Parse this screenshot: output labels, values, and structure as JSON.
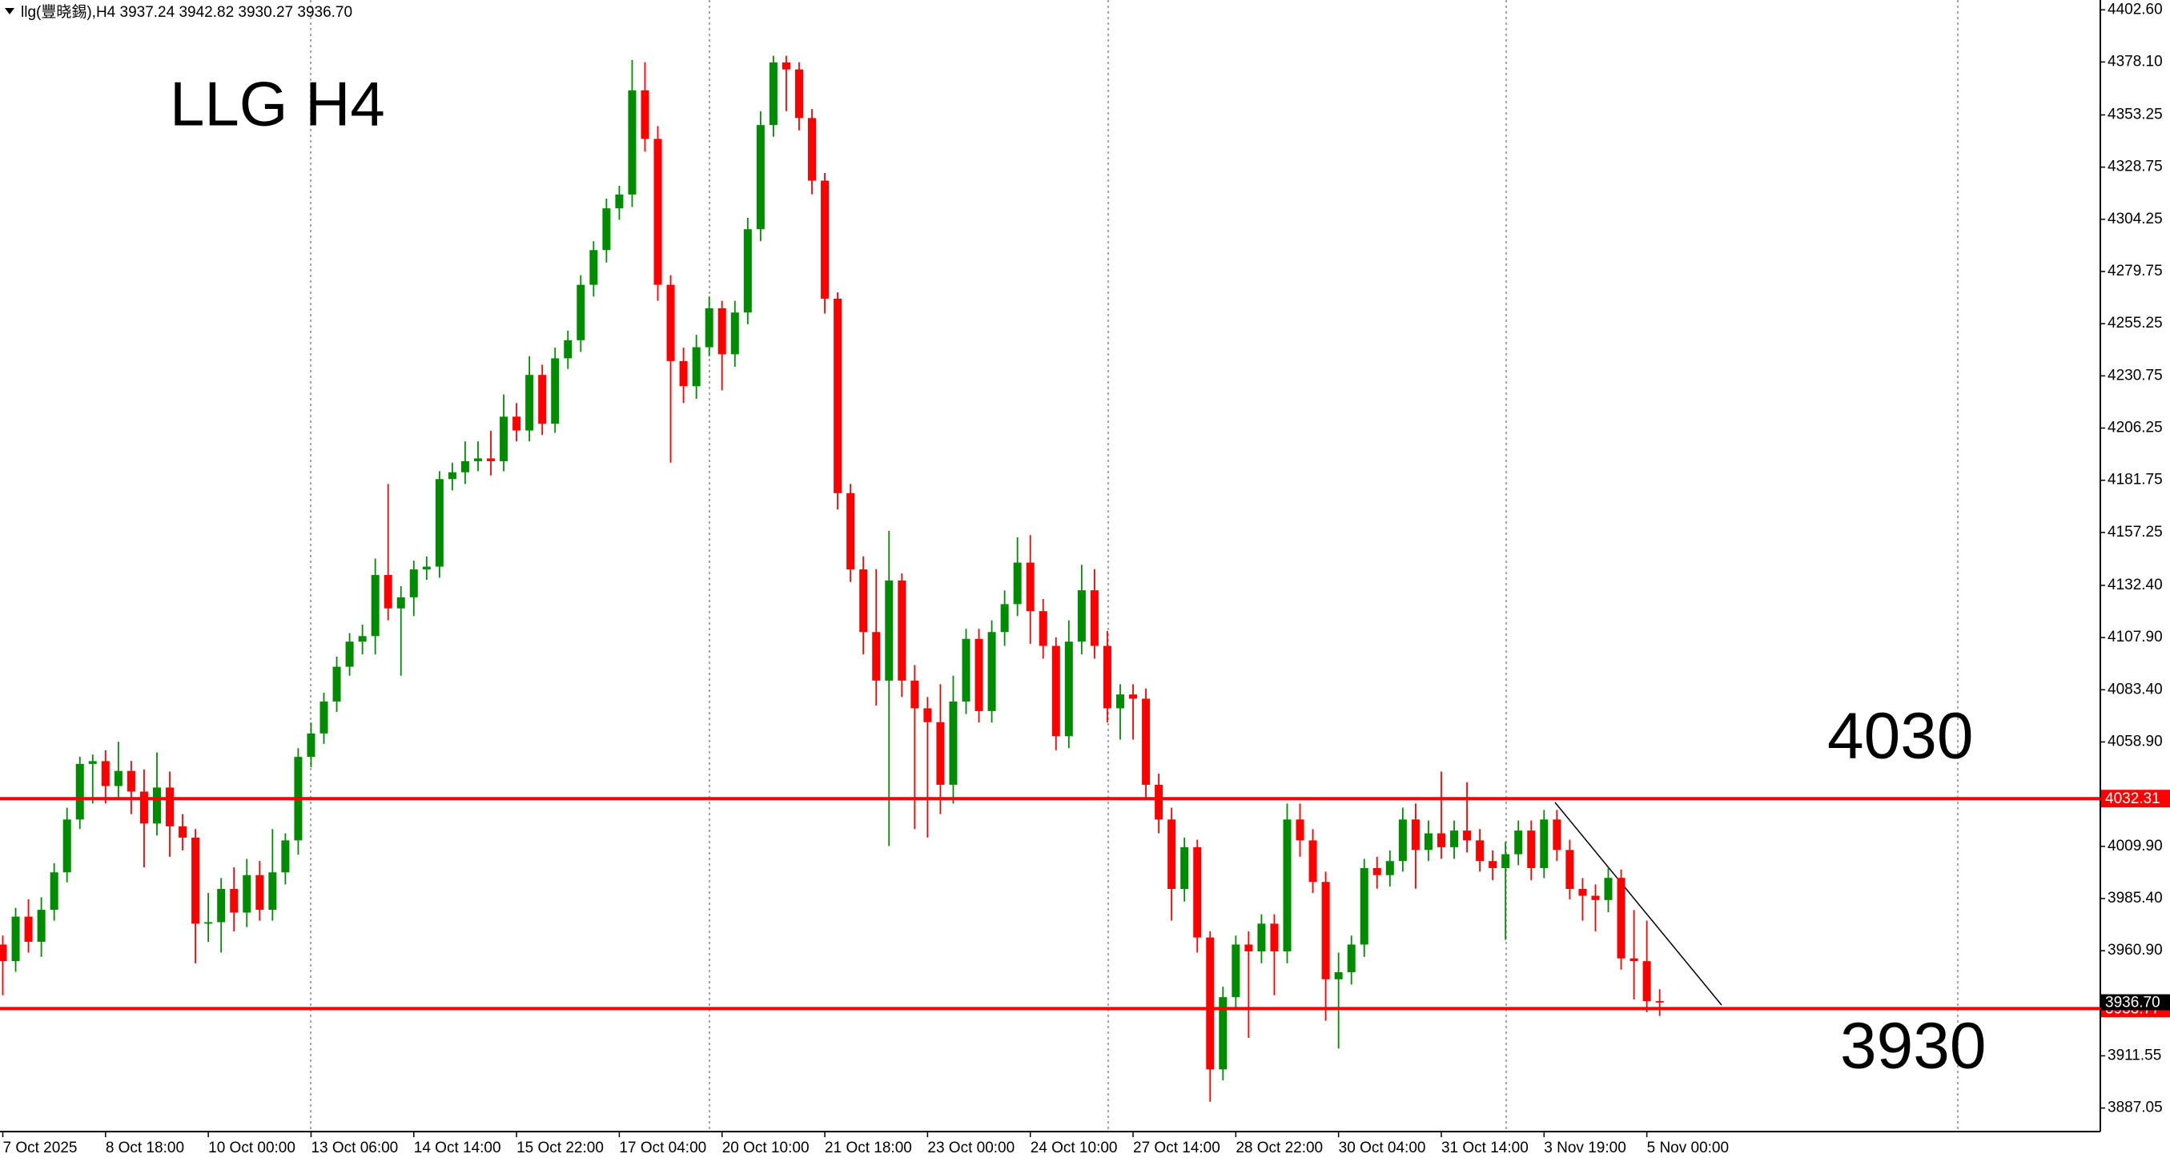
{
  "chart_data": {
    "type": "candlestick",
    "title": "llg(豐晓錫),H4  3937.24 3942.82 3930.27 3936.70",
    "annotations": [
      "LLG  H4",
      "4030",
      "3930"
    ],
    "up_color": "#008c00",
    "down_color": "#ff0000",
    "hline_color": "#ff0000",
    "categories": [
      "7 Oct 2025",
      null,
      null,
      null,
      null,
      null,
      null,
      null,
      "8 Oct 18:00",
      null,
      null,
      null,
      null,
      null,
      null,
      null,
      "10 Oct 00:00",
      null,
      null,
      null,
      null,
      null,
      null,
      null,
      "13 Oct 06:00",
      null,
      null,
      null,
      null,
      null,
      null,
      null,
      "14 Oct 14:00",
      null,
      null,
      null,
      null,
      null,
      null,
      null,
      "15 Oct 22:00",
      null,
      null,
      null,
      null,
      null,
      null,
      null,
      "17 Oct 04:00",
      null,
      null,
      null,
      null,
      null,
      null,
      null,
      "20 Oct 10:00",
      null,
      null,
      null,
      null,
      null,
      null,
      null,
      "21 Oct 18:00",
      null,
      null,
      null,
      null,
      null,
      null,
      null,
      "23 Oct 00:00",
      null,
      null,
      null,
      null,
      null,
      null,
      null,
      "24 Oct 10:00",
      null,
      null,
      null,
      null,
      null,
      null,
      null,
      "27 Oct 14:00",
      null,
      null,
      null,
      null,
      null,
      null,
      null,
      "28 Oct 22:00",
      null,
      null,
      null,
      null,
      null,
      null,
      null,
      "30 Oct 04:00",
      null,
      null,
      null,
      null,
      null,
      null,
      null,
      "31 Oct 14:00",
      null,
      null,
      null,
      null,
      null,
      null,
      null,
      "3 Nov 19:00",
      null,
      null,
      null,
      null,
      null,
      null,
      null,
      "5 Nov 00:00",
      null
    ],
    "open": [
      3963.8,
      3956.0,
      3976.9,
      3965.1,
      3980.1,
      3997.7,
      4022.5,
      4048.6,
      4049.9,
      4038.2,
      4045.3,
      4035.6,
      4020.6,
      4037.5,
      4019.3,
      4014.0,
      3973.6,
      3974.3,
      3989.9,
      3978.8,
      3996.4,
      3980.1,
      3997.7,
      4012.7,
      4051.9,
      4062.9,
      4077.9,
      4094.2,
      4106.0,
      4108.6,
      4137.3,
      4121.6,
      4126.8,
      4139.9,
      4141.2,
      4182.3,
      4185.5,
      4190.7,
      4192.0,
      4190.7,
      4211.6,
      4205.1,
      4231.2,
      4208.3,
      4239.0,
      4247.5,
      4273.5,
      4289.8,
      4309.4,
      4315.9,
      4364.8,
      4342.0,
      4273.5,
      4237.7,
      4225.9,
      4244.2,
      4262.5,
      4240.9,
      4260.5,
      4299.6,
      4348.5,
      4377.9,
      4374.6,
      4351.8,
      4322.4,
      4267.0,
      4175.7,
      4139.9,
      4110.5,
      4087.7,
      4134.7,
      4087.7,
      4074.7,
      4068.2,
      4038.8,
      4077.9,
      4107.3,
      4073.4,
      4110.5,
      4123.6,
      4143.1,
      4120.3,
      4104.0,
      4061.6,
      4106.0,
      4130.1,
      4104.0,
      4074.7,
      4081.2,
      4079.2,
      4038.8,
      4022.5,
      3989.9,
      4009.5,
      3967.1,
      3905.2,
      3939.1,
      3963.8,
      3960.6,
      3973.6,
      3960.6,
      4022.5,
      4012.7,
      3993.2,
      3947.5,
      3950.8,
      3963.8,
      3999.7,
      3996.4,
      4003.0,
      4022.5,
      4008.2,
      4016.0,
      4009.5,
      4017.3,
      4012.7,
      4003.0,
      3999.7,
      4006.2,
      4017.3,
      3999.7,
      4022.5,
      4008.2,
      3989.9,
      3986.7,
      3984.7,
      3995.1,
      3957.3,
      3956.0,
      3937.24
    ],
    "high": [
      3968,
      3981,
      3985,
      3986,
      4002,
      4028,
      4052,
      4053,
      4055,
      4059,
      4050,
      4046,
      4054,
      4045,
      4025,
      4018,
      3988,
      3995,
      4000,
      4004,
      4003,
      4018,
      4016,
      4056,
      4068,
      4082,
      4099,
      4110,
      4114,
      4145,
      4180,
      4132,
      4144,
      4146,
      4186,
      4190,
      4200,
      4200,
      4205,
      4222,
      4218,
      4240,
      4236,
      4244,
      4252,
      4278,
      4294,
      4314,
      4320,
      4379,
      4378,
      4348,
      4278,
      4244,
      4250,
      4268,
      4266,
      4266,
      4305,
      4355,
      4381,
      4381,
      4378,
      4356,
      4326,
      4270,
      4180,
      4146,
      4140,
      4158,
      4138,
      4095,
      4080,
      4086,
      4090,
      4112,
      4112,
      4116,
      4130,
      4155,
      4156,
      4126,
      4108,
      4116,
      4142,
      4140,
      4111,
      4086,
      4086,
      4084,
      4044,
      4028,
      4014,
      4013,
      3970,
      3944,
      3968,
      3970,
      3978,
      3978,
      4030,
      4030,
      4018,
      3998,
      3960,
      3968,
      4004,
      4005,
      4008,
      4028,
      4030,
      4022,
      4045,
      4022,
      4040,
      4018,
      4008,
      4012,
      4022,
      4022,
      4027,
      4027,
      4013,
      3995,
      3992,
      4000,
      3999,
      3980,
      3975,
      3942.82
    ],
    "low": [
      3940,
      3951,
      3960,
      3958,
      3975,
      3993,
      4018,
      4030,
      4030,
      4033,
      4025,
      4000,
      4015,
      4005,
      4008,
      3955,
      3965,
      3960,
      3970,
      3972,
      3975,
      3975,
      3992,
      4006,
      4047,
      4058,
      4073,
      4090,
      4100,
      4100,
      4116,
      4090,
      4118,
      4135,
      4136,
      4177,
      4180,
      4186,
      4184,
      4186,
      4200,
      4200,
      4203,
      4204,
      4234,
      4242,
      4268,
      4284,
      4304,
      4310,
      4336,
      4266,
      4190,
      4218,
      4220,
      4240,
      4224,
      4235,
      4255,
      4294,
      4343,
      4355,
      4346,
      4316,
      4260,
      4168,
      4134,
      4100,
      4076,
      4010,
      4080,
      4018,
      4014,
      4025,
      4030,
      4072,
      4068,
      4068,
      4104,
      4118,
      4105,
      4098,
      4055,
      4056,
      4100,
      4098,
      4068,
      4060,
      4060,
      4032,
      4016,
      3975,
      3984,
      3960,
      3890,
      3900,
      3934,
      3920,
      3955,
      3940,
      3955,
      4005,
      3988,
      3928,
      3915,
      3945,
      3958,
      3990,
      3991,
      3998,
      3990,
      4003,
      4004,
      4004,
      4007,
      3998,
      3994,
      3966,
      4001,
      3994,
      3995,
      4003,
      3985,
      3975,
      3970,
      3979,
      3952,
      3938,
      3932,
      3930.27
    ],
    "close": [
      3956.0,
      3976.9,
      3965.1,
      3980.1,
      3997.7,
      4022.5,
      4048.6,
      4049.9,
      4038.2,
      4045.3,
      4035.6,
      4020.6,
      4037.5,
      4019.3,
      4014.0,
      3973.6,
      3974.3,
      3989.9,
      3978.8,
      3996.4,
      3980.1,
      3997.7,
      4012.7,
      4051.9,
      4062.9,
      4077.9,
      4094.2,
      4106.0,
      4108.6,
      4137.3,
      4121.6,
      4126.8,
      4139.9,
      4141.2,
      4182.3,
      4185.5,
      4190.7,
      4192.0,
      4190.7,
      4211.6,
      4205.1,
      4231.2,
      4208.3,
      4239.0,
      4247.5,
      4273.5,
      4289.8,
      4309.4,
      4315.9,
      4364.8,
      4342.0,
      4273.5,
      4237.7,
      4225.9,
      4244.2,
      4262.5,
      4240.9,
      4260.5,
      4299.6,
      4348.5,
      4377.9,
      4374.6,
      4351.8,
      4322.4,
      4267.0,
      4175.7,
      4139.9,
      4110.5,
      4087.7,
      4134.7,
      4087.7,
      4074.7,
      4068.2,
      4038.8,
      4077.9,
      4107.3,
      4073.4,
      4110.5,
      4123.6,
      4143.1,
      4120.3,
      4104.0,
      4061.6,
      4106.0,
      4130.1,
      4104.0,
      4074.7,
      4081.2,
      4079.2,
      4038.8,
      4022.5,
      3989.9,
      4009.5,
      3967.1,
      3905.2,
      3939.1,
      3963.8,
      3960.6,
      3973.6,
      3960.6,
      4022.5,
      4012.7,
      3993.2,
      3947.5,
      3950.8,
      3963.8,
      3999.7,
      3996.4,
      4003.0,
      4022.5,
      4008.2,
      4016.0,
      4009.5,
      4017.3,
      4012.7,
      4003.0,
      3999.7,
      4006.2,
      4017.3,
      3999.7,
      4022.5,
      4008.2,
      3989.9,
      3986.7,
      3984.7,
      3995.1,
      3957.3,
      3956.0,
      3937.2,
      3936.7
    ],
    "ylim": [
      3876.0,
      4407.2
    ],
    "yticks": [
      {
        "value": 4402.6,
        "label": "4402.60"
      },
      {
        "value": 4378.1,
        "label": "4378.10"
      },
      4353.25,
      4328.75,
      4304.25,
      4279.75,
      4255.25,
      4230.75,
      4206.25,
      4181.75,
      4157.25,
      {
        "value": 4132.4,
        "label": "4132.40"
      },
      {
        "value": 4107.9,
        "label": "4107.90"
      },
      {
        "value": 4083.4,
        "label": "4083.40"
      },
      {
        "value": 4058.9,
        "label": "4058.90"
      },
      {
        "value": 4009.9,
        "label": "4009.90"
      },
      {
        "value": 3985.4,
        "label": "3985.40"
      },
      {
        "value": 3960.9,
        "label": "3960.90"
      },
      3911.55,
      3887.05
    ],
    "hlines": [
      4032.31,
      3933.77
    ],
    "current_price": {
      "value": 3936.7,
      "label": "3936.70"
    }
  }
}
